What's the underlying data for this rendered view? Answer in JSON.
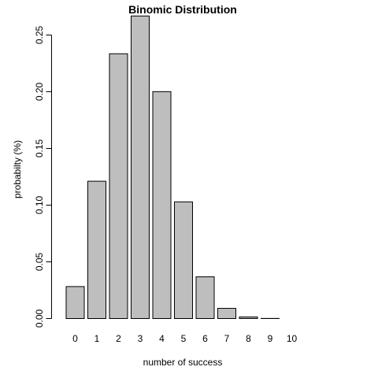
{
  "chart_data": {
    "type": "bar",
    "title": "Binomic Distribution",
    "xlabel": "number of success",
    "ylabel": "probabilty (%)",
    "categories": [
      "0",
      "1",
      "2",
      "3",
      "4",
      "5",
      "6",
      "7",
      "8",
      "9",
      "10"
    ],
    "values": [
      0.0282,
      0.1211,
      0.2335,
      0.2668,
      0.2001,
      0.1029,
      0.0368,
      0.009,
      0.0014,
      0.0001,
      0.0
    ],
    "ylim": [
      0,
      0.27
    ],
    "yticks": [
      "0.00",
      "0.05",
      "0.10",
      "0.15",
      "0.20",
      "0.25"
    ],
    "ytick_values": [
      0,
      0.05,
      0.1,
      0.15,
      0.2,
      0.25
    ],
    "bar_fill": "#bebebe",
    "bar_stroke": "#000000",
    "grid": false,
    "legend": "none"
  }
}
